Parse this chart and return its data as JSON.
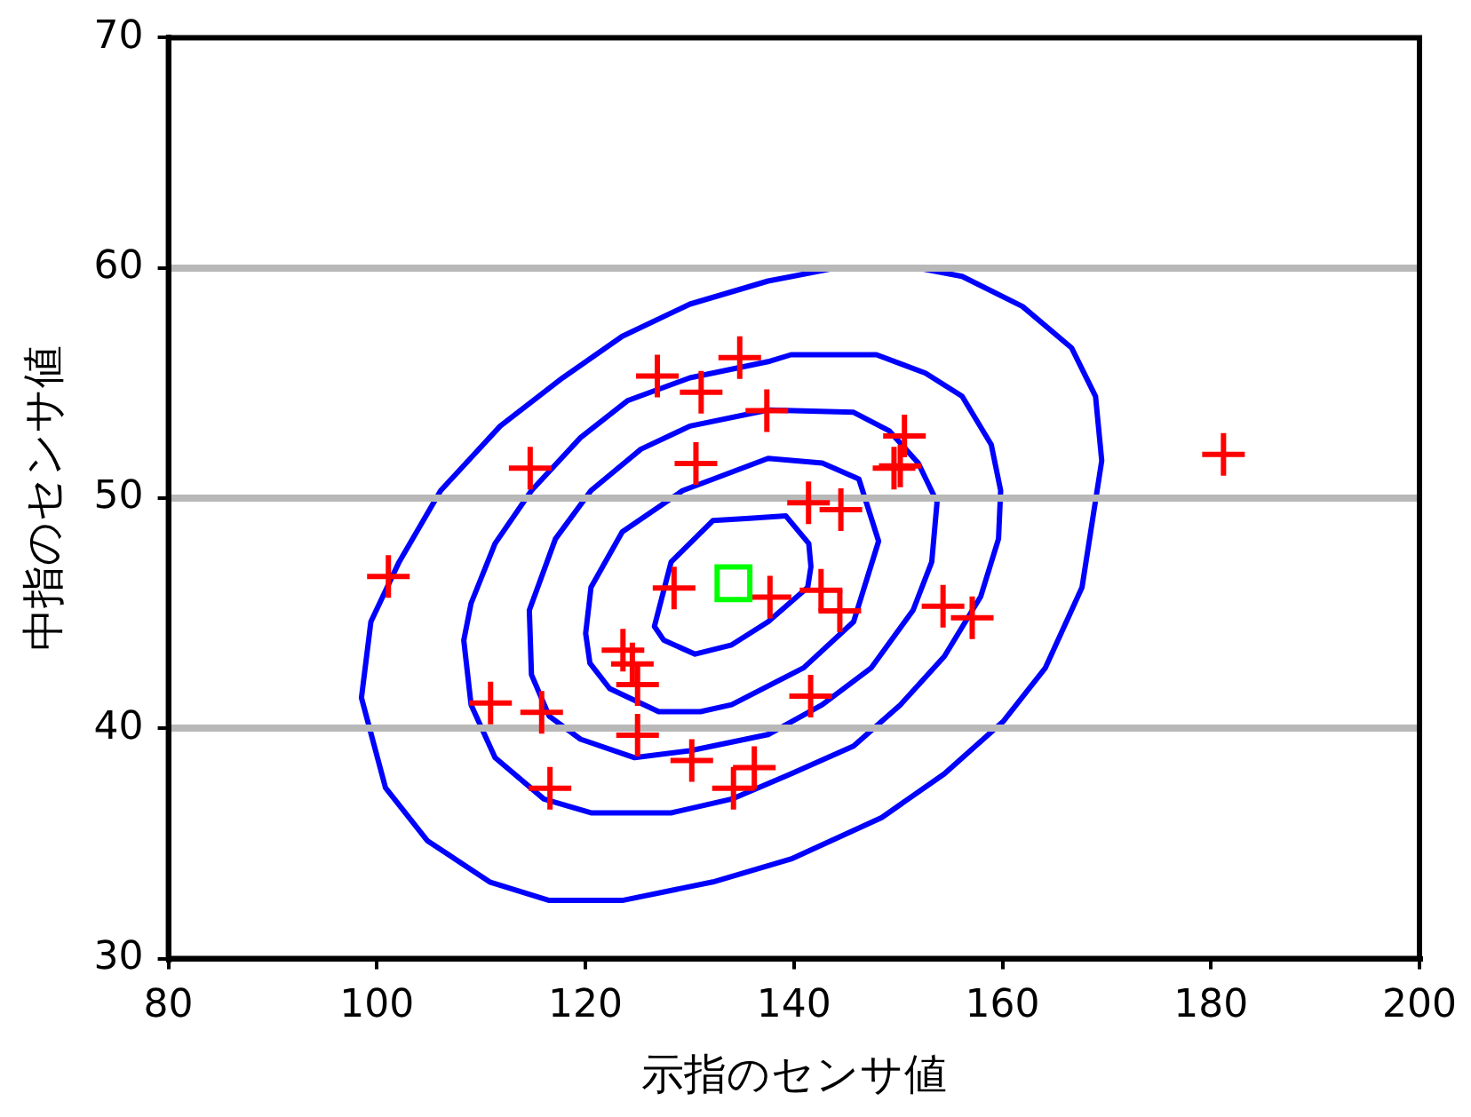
{
  "chart_data": {
    "type": "scatter",
    "xlabel": "示指のセンサ値",
    "ylabel": "中指のセンサ値",
    "xlim": [
      80,
      200
    ],
    "xticks": [
      80,
      100,
      120,
      140,
      160,
      180,
      200
    ],
    "ylim": [
      30,
      70
    ],
    "yticks": [
      30,
      40,
      50,
      60,
      70
    ],
    "grid": "y",
    "legend": false,
    "series": [
      {
        "type": "scatter",
        "marker": "cross",
        "color": "#ff0000",
        "x": [
          101.1,
          110.9,
          114.7,
          115.8,
          116.6,
          126.9,
          131.1,
          134.8,
          137.4,
          130.6,
          128.5,
          137.7,
          141.4,
          144.5,
          142.6,
          144.4,
          150.6,
          149.6,
          150.2,
          154.3,
          157.1,
          181.2,
          123.6,
          124.5,
          125.0,
          125.0,
          130.2,
          136.2,
          134.2,
          141.6
        ],
        "values": [
          46.6,
          41.1,
          51.3,
          40.7,
          37.4,
          55.3,
          54.6,
          56.1,
          53.8,
          51.5,
          46.1,
          45.7,
          49.8,
          49.5,
          46.0,
          45.1,
          52.7,
          51.3,
          51.4,
          45.3,
          44.8,
          51.9,
          43.4,
          42.8,
          41.9,
          39.7,
          38.6,
          38.3,
          37.4,
          41.4
        ]
      },
      {
        "type": "scatter",
        "marker": "square",
        "color": "#00ff00",
        "x": [
          134.2
        ],
        "values": [
          46.3
        ]
      }
    ]
  }
}
